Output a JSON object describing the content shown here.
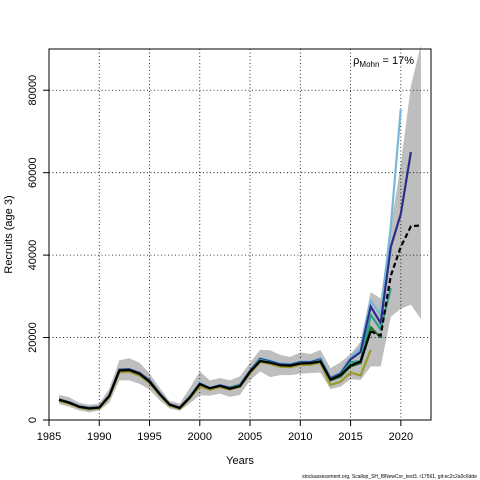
{
  "chart_data": {
    "type": "line",
    "title": "",
    "xlabel": "Years",
    "ylabel": "Recruits (age 3)",
    "xlim": [
      1985,
      2023
    ],
    "ylim": [
      0,
      90000
    ],
    "xticks": [
      1985,
      1990,
      1995,
      2000,
      2005,
      2010,
      2015,
      2020
    ],
    "yticks": [
      0,
      20000,
      40000,
      60000,
      80000
    ],
    "grid": true,
    "grid_style": "dotted",
    "annotation": {
      "symbol": "ρ",
      "subscript": "Mohn",
      "text": " = 17%"
    },
    "credit": "stockassessment.org, Scallop_SH_f8NewCor_test3, r17561, git:ec2c2a0c6dde",
    "confidence_band": {
      "color": "#bebebe",
      "x": [
        1986,
        1987,
        1988,
        1989,
        1990,
        1991,
        1992,
        1993,
        1994,
        1995,
        1996,
        1997,
        1998,
        1999,
        2000,
        2001,
        2002,
        2003,
        2004,
        2005,
        2006,
        2007,
        2008,
        2009,
        2010,
        2011,
        2012,
        2013,
        2014,
        2015,
        2016,
        2017,
        2018,
        2019,
        2020,
        2021,
        2022
      ],
      "lower": [
        3800,
        3200,
        2300,
        1900,
        2300,
        4200,
        9600,
        9600,
        8800,
        7400,
        4800,
        2800,
        2200,
        4000,
        6000,
        5900,
        6400,
        5600,
        6100,
        9600,
        11800,
        10400,
        10900,
        10900,
        11200,
        11400,
        11500,
        7500,
        8100,
        9900,
        9700,
        13000,
        13000,
        25000,
        27000,
        28000,
        24500
      ],
      "upper": [
        6100,
        5500,
        4200,
        3700,
        4000,
        7600,
        14500,
        15000,
        13900,
        11300,
        7800,
        4600,
        4000,
        7700,
        11800,
        9600,
        10200,
        9600,
        10600,
        13900,
        17000,
        16900,
        15800,
        15300,
        16400,
        16000,
        17000,
        12600,
        14000,
        16000,
        19000,
        31000,
        29500,
        47000,
        62000,
        81000,
        91000
      ]
    },
    "series": [
      {
        "color": "#77b8d8",
        "x": [
          1986,
          1987,
          1988,
          1989,
          1990,
          1991,
          1992,
          1993,
          1994,
          1995,
          1996,
          1997,
          1998,
          1999,
          2000,
          2001,
          2002,
          2003,
          2004,
          2005,
          2006,
          2007,
          2008,
          2009,
          2010,
          2011,
          2012,
          2013,
          2014,
          2015,
          2016,
          2017,
          2018,
          2019,
          2020
        ],
        "values": [
          5000,
          4300,
          3300,
          2900,
          3100,
          6000,
          12200,
          12300,
          11400,
          9600,
          6500,
          3800,
          3000,
          5600,
          9000,
          7800,
          8500,
          7900,
          8600,
          12000,
          15000,
          14400,
          13700,
          13600,
          14200,
          14200,
          15000,
          10300,
          11500,
          15200,
          17500,
          29000,
          25500,
          47000,
          75500
        ]
      },
      {
        "color": "#2c2c8a",
        "x": [
          1986,
          1987,
          1988,
          1989,
          1990,
          1991,
          1992,
          1993,
          1994,
          1995,
          1996,
          1997,
          1998,
          1999,
          2000,
          2001,
          2002,
          2003,
          2004,
          2005,
          2006,
          2007,
          2008,
          2009,
          2010,
          2011,
          2012,
          2013,
          2014,
          2015,
          2016,
          2017,
          2018,
          2019,
          2020,
          2021
        ],
        "values": [
          5000,
          4300,
          3300,
          2900,
          3100,
          6000,
          12200,
          12300,
          11400,
          9600,
          6500,
          3800,
          3000,
          5600,
          8800,
          7700,
          8400,
          7800,
          8500,
          11900,
          14800,
          14200,
          13500,
          13400,
          14000,
          14000,
          14700,
          10100,
          11200,
          14700,
          16500,
          27500,
          23500,
          42000,
          50000,
          65000
        ]
      },
      {
        "color": "#2f9e8a",
        "x": [
          1986,
          1987,
          1988,
          1989,
          1990,
          1991,
          1992,
          1993,
          1994,
          1995,
          1996,
          1997,
          1998,
          1999,
          2000,
          2001,
          2002,
          2003,
          2004,
          2005,
          2006,
          2007,
          2008,
          2009,
          2010,
          2011,
          2012,
          2013,
          2014,
          2015,
          2016,
          2017,
          2018,
          2019
        ],
        "values": [
          4900,
          4200,
          3200,
          2800,
          3000,
          5900,
          12000,
          12100,
          11200,
          9400,
          6400,
          3700,
          2900,
          5500,
          8600,
          7600,
          8300,
          7700,
          8400,
          11700,
          14600,
          14000,
          13300,
          13200,
          13800,
          13800,
          14500,
          9900,
          11000,
          14000,
          14300,
          25500,
          22000,
          32000
        ]
      },
      {
        "color": "#1f7a2e",
        "x": [
          1986,
          1987,
          1988,
          1989,
          1990,
          1991,
          1992,
          1993,
          1994,
          1995,
          1996,
          1997,
          1998,
          1999,
          2000,
          2001,
          2002,
          2003,
          2004,
          2005,
          2006,
          2007,
          2008,
          2009,
          2010,
          2011,
          2012,
          2013,
          2014,
          2015,
          2016,
          2017,
          2018
        ],
        "values": [
          4800,
          4100,
          3100,
          2700,
          2900,
          5800,
          11800,
          11900,
          11000,
          9200,
          6300,
          3600,
          2800,
          5400,
          8400,
          7500,
          8200,
          7600,
          8300,
          11500,
          14300,
          13800,
          13100,
          13000,
          13600,
          13600,
          14200,
          9600,
          10500,
          13000,
          13800,
          22500,
          20000
        ]
      },
      {
        "color": "#9a9a2a",
        "x": [
          1986,
          1987,
          1988,
          1989,
          1990,
          1991,
          1992,
          1993,
          1994,
          1995,
          1996,
          1997,
          1998,
          1999,
          2000,
          2001,
          2002,
          2003,
          2004,
          2005,
          2006,
          2007,
          2008,
          2009,
          2010,
          2011,
          2012,
          2013,
          2014,
          2015,
          2016,
          2017
        ],
        "values": [
          4600,
          4000,
          3000,
          2600,
          2800,
          5600,
          11600,
          11700,
          10800,
          9000,
          6100,
          3500,
          2700,
          5200,
          8200,
          7300,
          8000,
          7400,
          8100,
          11300,
          14100,
          13600,
          12900,
          12800,
          13400,
          13400,
          13900,
          8500,
          9300,
          11500,
          10800,
          17000
        ]
      },
      {
        "color": "#000000",
        "dashed_last_years": true,
        "x": [
          1986,
          1987,
          1988,
          1989,
          1990,
          1991,
          1992,
          1993,
          1994,
          1995,
          1996,
          1997,
          1998,
          1999,
          2000,
          2001,
          2002,
          2003,
          2004,
          2005,
          2006,
          2007,
          2008,
          2009,
          2010,
          2011,
          2012,
          2013,
          2014,
          2015,
          2016,
          2017,
          2018,
          2019,
          2020,
          2021,
          2022
        ],
        "values": [
          4900,
          4200,
          3200,
          2800,
          3000,
          5800,
          12000,
          12100,
          11200,
          9300,
          6300,
          3700,
          2900,
          5400,
          8700,
          7700,
          8300,
          7600,
          8200,
          11700,
          14300,
          13900,
          13300,
          13200,
          13700,
          13800,
          14200,
          9800,
          10900,
          13200,
          14200,
          21500,
          20500,
          35000,
          42000,
          47000,
          47200
        ]
      }
    ]
  }
}
